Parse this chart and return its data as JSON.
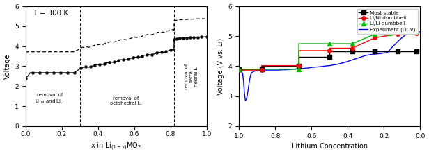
{
  "left": {
    "title": "T = 300 K",
    "xlabel": "x in Li$_{(1-x)}$MO$_2$",
    "ylabel": "Voltage",
    "xlim": [
      0,
      1.0
    ],
    "ylim": [
      0,
      6
    ],
    "yticks": [
      0,
      1,
      2,
      3,
      4,
      5,
      6
    ],
    "xticks": [
      0,
      0.2,
      0.4,
      0.6,
      0.8,
      1.0
    ],
    "vlines": [
      0.3,
      0.82
    ]
  },
  "right": {
    "xlabel": "Lithium Concentration",
    "ylabel": "Voltage (V vs. Li)",
    "xlim": [
      1.0,
      0.0
    ],
    "ylim": [
      2.0,
      6.0
    ],
    "yticks": [
      2,
      3,
      4,
      5,
      6
    ],
    "xticks": [
      1.0,
      0.8,
      0.6,
      0.4,
      0.2,
      0.0
    ]
  },
  "ms_x": [
    1.0,
    0.875,
    0.875,
    0.67,
    0.67,
    0.5,
    0.5,
    0.375,
    0.375,
    0.25,
    0.25,
    0.125,
    0.125,
    0.02
  ],
  "ms_y": [
    3.9,
    3.9,
    4.02,
    4.02,
    4.3,
    4.3,
    4.5,
    4.5,
    4.5,
    4.5,
    4.5,
    4.5,
    4.5,
    4.5
  ],
  "ms_mx": [
    1.0,
    0.875,
    0.67,
    0.5,
    0.375,
    0.25,
    0.125,
    0.02
  ],
  "ms_my": [
    3.9,
    3.9,
    4.02,
    4.3,
    4.5,
    4.5,
    4.5,
    4.5
  ],
  "ln_x": [
    1.0,
    0.875,
    0.875,
    0.67,
    0.67,
    0.5,
    0.5,
    0.375,
    0.375,
    0.25,
    0.25,
    0.125,
    0.125,
    0.02
  ],
  "ln_y": [
    3.87,
    3.87,
    4.02,
    4.02,
    4.52,
    4.52,
    4.6,
    4.6,
    4.6,
    4.95,
    4.95,
    5.07,
    5.1,
    5.1
  ],
  "ln_mx": [
    1.0,
    0.875,
    0.67,
    0.5,
    0.375,
    0.25,
    0.125,
    0.02
  ],
  "ln_my": [
    3.87,
    3.87,
    4.02,
    4.52,
    4.6,
    4.95,
    5.07,
    5.1
  ],
  "ll_x": [
    1.0,
    0.67,
    0.67,
    0.5,
    0.5,
    0.375,
    0.375,
    0.25,
    0.25,
    0.17,
    0.17,
    0.02
  ],
  "ll_y": [
    3.9,
    3.9,
    4.75,
    4.75,
    4.75,
    4.75,
    4.75,
    5.07,
    5.07,
    5.1,
    5.15,
    5.15
  ],
  "ll_mx": [
    1.0,
    0.67,
    0.5,
    0.375,
    0.25,
    0.17,
    0.02
  ],
  "ll_my": [
    3.9,
    3.9,
    4.75,
    4.75,
    5.07,
    5.1,
    5.15
  ],
  "exp_x": [
    1.0,
    0.99,
    0.98,
    0.975,
    0.97,
    0.965,
    0.96,
    0.955,
    0.95,
    0.945,
    0.94,
    0.935,
    0.93,
    0.92,
    0.91,
    0.9,
    0.88,
    0.86,
    0.84,
    0.82,
    0.8,
    0.78,
    0.76,
    0.74,
    0.72,
    0.7,
    0.68,
    0.66,
    0.64,
    0.62,
    0.6,
    0.58,
    0.56,
    0.54,
    0.52,
    0.5,
    0.48,
    0.46,
    0.44,
    0.42,
    0.4,
    0.38,
    0.36,
    0.34,
    0.32,
    0.3,
    0.28,
    0.26,
    0.24,
    0.22,
    0.2,
    0.18,
    0.16,
    0.14,
    0.12,
    0.1,
    0.09,
    0.08,
    0.07,
    0.06,
    0.05,
    0.04,
    0.03,
    0.02,
    0.01,
    0.0
  ],
  "exp_y": [
    3.85,
    3.83,
    3.76,
    3.5,
    3.1,
    2.85,
    2.88,
    3.0,
    3.2,
    3.4,
    3.6,
    3.72,
    3.78,
    3.82,
    3.84,
    3.85,
    3.86,
    3.87,
    3.87,
    3.87,
    3.87,
    3.87,
    3.88,
    3.88,
    3.89,
    3.9,
    3.91,
    3.92,
    3.93,
    3.94,
    3.96,
    3.97,
    3.98,
    3.99,
    4.01,
    4.02,
    4.04,
    4.06,
    4.09,
    4.12,
    4.16,
    4.2,
    4.24,
    4.28,
    4.32,
    4.36,
    4.38,
    4.4,
    4.41,
    4.42,
    4.44,
    4.46,
    4.6,
    4.72,
    4.85,
    4.95,
    5.0,
    5.05,
    5.08,
    5.1,
    5.11,
    5.12,
    5.13,
    5.14,
    5.15,
    5.15
  ]
}
